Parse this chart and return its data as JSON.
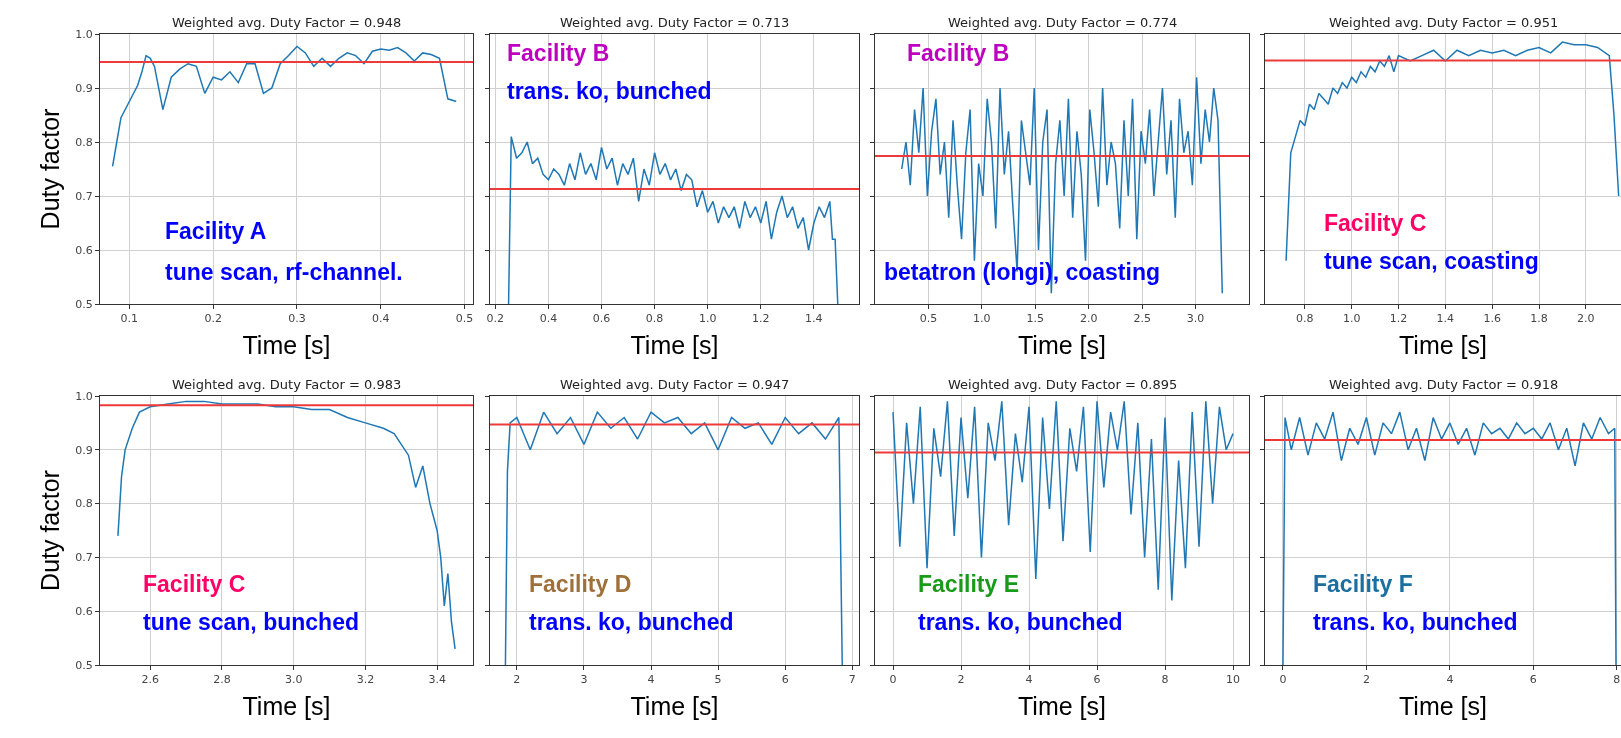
{
  "chart_data": [
    {
      "type": "line",
      "title": "Weighted avg. Duty Factor = 0.948",
      "xlabel": "Time [s]",
      "ylabel": "Duty factor",
      "xlim": [
        0.065,
        0.51
      ],
      "xticks": [
        0.1,
        0.2,
        0.3,
        0.4,
        0.5
      ],
      "ylim": [
        0.5,
        1.0
      ],
      "yticks": [
        0.5,
        0.6,
        0.7,
        0.8,
        0.9,
        {
          "value": 1.0,
          "label": "1.0"
        }
      ],
      "grid": true,
      "series": [
        {
          "color": "#1f77b4",
          "x": [
            0.08,
            0.085,
            0.09,
            0.1,
            0.11,
            0.115,
            0.12,
            0.125,
            0.13,
            0.14,
            0.15,
            0.16,
            0.17,
            0.18,
            0.19,
            0.2,
            0.21,
            0.22,
            0.23,
            0.24,
            0.25,
            0.26,
            0.27,
            0.28,
            0.29,
            0.3,
            0.31,
            0.32,
            0.33,
            0.34,
            0.35,
            0.36,
            0.37,
            0.38,
            0.39,
            0.4,
            0.41,
            0.42,
            0.43,
            0.44,
            0.45,
            0.46,
            0.47,
            0.48,
            0.49
          ],
          "values": [
            0.755,
            0.8,
            0.845,
            0.875,
            0.905,
            0.93,
            0.96,
            0.955,
            0.94,
            0.86,
            0.92,
            0.935,
            0.945,
            0.94,
            0.89,
            0.92,
            0.915,
            0.93,
            0.91,
            0.945,
            0.945,
            0.89,
            0.9,
            0.945,
            0.96,
            0.977,
            0.965,
            0.94,
            0.955,
            0.94,
            0.955,
            0.965,
            0.96,
            0.945,
            0.968,
            0.972,
            0.97,
            0.975,
            0.965,
            0.95,
            0.965,
            0.962,
            0.955,
            0.88,
            0.875
          ]
        }
      ],
      "ref_lines": [
        {
          "axis": "y",
          "value": 0.948,
          "color": "#ee3a3a"
        }
      ],
      "annotations": [
        "Facility A",
        "tune scan, rf-channel."
      ]
    },
    {
      "type": "line",
      "title": "Weighted avg. Duty Factor = 0.713",
      "xlabel": "Time [s]",
      "xlim": [
        0.18,
        1.57
      ],
      "xticks": [
        0.2,
        0.4,
        0.6,
        0.8,
        {
          "value": 1.0,
          "label": "1.0"
        },
        1.2,
        1.4
      ],
      "ylim": [
        0.5,
        1.0
      ],
      "yticks": [
        0.5,
        0.6,
        0.7,
        0.8,
        0.9,
        1.0
      ],
      "grid": true,
      "tick_labels": "x",
      "series": [
        {
          "color": "#1f77b4",
          "x": [
            0.25,
            0.26,
            0.28,
            0.3,
            0.32,
            0.34,
            0.36,
            0.38,
            0.4,
            0.42,
            0.44,
            0.46,
            0.48,
            0.5,
            0.52,
            0.54,
            0.56,
            0.58,
            0.6,
            0.62,
            0.64,
            0.66,
            0.68,
            0.7,
            0.72,
            0.74,
            0.76,
            0.78,
            0.8,
            0.82,
            0.84,
            0.86,
            0.88,
            0.9,
            0.92,
            0.94,
            0.96,
            0.98,
            1.0,
            1.02,
            1.04,
            1.06,
            1.08,
            1.1,
            1.12,
            1.14,
            1.16,
            1.18,
            1.2,
            1.22,
            1.24,
            1.26,
            1.28,
            1.3,
            1.32,
            1.34,
            1.36,
            1.38,
            1.4,
            1.42,
            1.44,
            1.46,
            1.47,
            1.48,
            1.49
          ],
          "values": [
            0.5,
            0.81,
            0.77,
            0.78,
            0.8,
            0.76,
            0.77,
            0.74,
            0.73,
            0.75,
            0.74,
            0.72,
            0.76,
            0.73,
            0.78,
            0.74,
            0.76,
            0.73,
            0.79,
            0.75,
            0.77,
            0.72,
            0.76,
            0.74,
            0.77,
            0.69,
            0.75,
            0.72,
            0.78,
            0.74,
            0.76,
            0.73,
            0.75,
            0.71,
            0.74,
            0.73,
            0.68,
            0.71,
            0.67,
            0.69,
            0.65,
            0.68,
            0.66,
            0.68,
            0.64,
            0.69,
            0.66,
            0.68,
            0.65,
            0.69,
            0.62,
            0.67,
            0.7,
            0.66,
            0.68,
            0.64,
            0.66,
            0.6,
            0.65,
            0.68,
            0.66,
            0.69,
            0.62,
            0.62,
            0.5
          ]
        }
      ],
      "ref_lines": [
        {
          "axis": "y",
          "value": 0.713,
          "color": "#ee3a3a"
        }
      ],
      "annotations": [
        "Facility B",
        "trans. ko, bunched"
      ]
    },
    {
      "type": "line",
      "title": "Weighted avg. Duty Factor = 0.774",
      "xlabel": "Time [s]",
      "xlim": [
        0.0,
        3.5
      ],
      "xticks": [
        0.5,
        {
          "value": 1.0,
          "label": "1.0"
        },
        1.5,
        {
          "value": 2.0,
          "label": "2.0"
        },
        2.5,
        {
          "value": 3.0,
          "label": "3.0"
        }
      ],
      "ylim": [
        0.5,
        1.0
      ],
      "yticks": [
        0.5,
        0.6,
        0.7,
        0.8,
        0.9,
        1.0
      ],
      "grid": true,
      "tick_labels": "x",
      "series": [
        {
          "color": "#1f77b4",
          "x": [
            0.25,
            0.29,
            0.33,
            0.37,
            0.41,
            0.45,
            0.49,
            0.53,
            0.57,
            0.61,
            0.65,
            0.69,
            0.73,
            0.77,
            0.81,
            0.85,
            0.89,
            0.93,
            0.97,
            1.01,
            1.05,
            1.09,
            1.13,
            1.17,
            1.21,
            1.25,
            1.29,
            1.33,
            1.37,
            1.41,
            1.45,
            1.49,
            1.53,
            1.57,
            1.61,
            1.65,
            1.69,
            1.73,
            1.77,
            1.81,
            1.85,
            1.89,
            1.93,
            1.97,
            2.01,
            2.05,
            2.09,
            2.13,
            2.17,
            2.21,
            2.25,
            2.29,
            2.33,
            2.37,
            2.41,
            2.45,
            2.49,
            2.53,
            2.57,
            2.61,
            2.65,
            2.69,
            2.73,
            2.77,
            2.81,
            2.85,
            2.89,
            2.93,
            2.97,
            3.01,
            3.05,
            3.09,
            3.13,
            3.17,
            3.21,
            3.25
          ],
          "values": [
            0.75,
            0.8,
            0.72,
            0.86,
            0.78,
            0.9,
            0.7,
            0.82,
            0.88,
            0.74,
            0.8,
            0.66,
            0.84,
            0.72,
            0.62,
            0.78,
            0.86,
            0.58,
            0.76,
            0.7,
            0.88,
            0.8,
            0.64,
            0.9,
            0.74,
            0.82,
            0.68,
            0.56,
            0.84,
            0.78,
            0.72,
            0.9,
            0.6,
            0.8,
            0.86,
            0.52,
            0.76,
            0.84,
            0.7,
            0.88,
            0.66,
            0.82,
            0.74,
            0.58,
            0.86,
            0.78,
            0.68,
            0.9,
            0.72,
            0.8,
            0.76,
            0.64,
            0.84,
            0.7,
            0.88,
            0.62,
            0.82,
            0.76,
            0.86,
            0.7,
            0.8,
            0.9,
            0.74,
            0.84,
            0.66,
            0.88,
            0.78,
            0.82,
            0.72,
            0.92,
            0.76,
            0.86,
            0.8,
            0.9,
            0.84,
            0.52
          ]
        }
      ],
      "ref_lines": [
        {
          "axis": "y",
          "value": 0.774,
          "color": "#ee3a3a"
        }
      ],
      "annotations": [
        "Facility B",
        "betatron (longi), coasting"
      ]
    },
    {
      "type": "line",
      "title": "Weighted avg. Duty Factor = 0.951",
      "xlabel": "Time [s]",
      "xlim": [
        0.63,
        2.15
      ],
      "xticks": [
        0.8,
        {
          "value": 1.0,
          "label": "1.0"
        },
        1.2,
        1.4,
        1.6,
        1.8,
        {
          "value": 2.0,
          "label": "2.0"
        }
      ],
      "ylim": [
        0.5,
        1.0
      ],
      "yticks": [
        0.5,
        0.6,
        0.7,
        0.8,
        0.9,
        1.0
      ],
      "grid": true,
      "tick_labels": "x",
      "series": [
        {
          "color": "#1f77b4",
          "x": [
            0.72,
            0.74,
            0.76,
            0.78,
            0.8,
            0.82,
            0.84,
            0.86,
            0.88,
            0.9,
            0.92,
            0.94,
            0.96,
            0.98,
            1.0,
            1.02,
            1.04,
            1.06,
            1.08,
            1.1,
            1.12,
            1.14,
            1.16,
            1.18,
            1.2,
            1.25,
            1.3,
            1.35,
            1.4,
            1.45,
            1.5,
            1.55,
            1.6,
            1.65,
            1.7,
            1.75,
            1.8,
            1.85,
            1.9,
            1.95,
            2.0,
            2.05,
            2.1,
            2.12,
            2.14
          ],
          "values": [
            0.58,
            0.78,
            0.81,
            0.84,
            0.83,
            0.87,
            0.86,
            0.89,
            0.88,
            0.87,
            0.9,
            0.89,
            0.91,
            0.9,
            0.92,
            0.91,
            0.93,
            0.92,
            0.94,
            0.93,
            0.95,
            0.94,
            0.96,
            0.93,
            0.96,
            0.95,
            0.96,
            0.97,
            0.95,
            0.97,
            0.96,
            0.97,
            0.965,
            0.97,
            0.96,
            0.97,
            0.975,
            0.965,
            0.985,
            0.98,
            0.98,
            0.975,
            0.96,
            0.85,
            0.7
          ]
        }
      ],
      "ref_lines": [
        {
          "axis": "y",
          "value": 0.951,
          "color": "#ee3a3a"
        }
      ],
      "annotations": [
        "Facility C",
        "tune scan, coasting"
      ]
    },
    {
      "type": "line",
      "title": "Weighted avg. Duty Factor = 0.983",
      "xlabel": "Time [s]",
      "ylabel": "Duty factor",
      "xlim": [
        2.46,
        3.5
      ],
      "xticks": [
        2.6,
        2.8,
        {
          "value": 3.0,
          "label": "3.0"
        },
        3.2,
        3.4
      ],
      "ylim": [
        0.5,
        1.0
      ],
      "yticks": [
        0.5,
        0.6,
        0.7,
        0.8,
        0.9,
        {
          "value": 1.0,
          "label": "1.0"
        }
      ],
      "grid": true,
      "series": [
        {
          "color": "#1f77b4",
          "x": [
            2.51,
            2.52,
            2.53,
            2.55,
            2.57,
            2.6,
            2.65,
            2.7,
            2.75,
            2.8,
            2.85,
            2.9,
            2.95,
            3.0,
            3.05,
            3.1,
            3.15,
            3.2,
            3.25,
            3.28,
            3.3,
            3.32,
            3.34,
            3.36,
            3.38,
            3.4,
            3.41,
            3.42,
            3.43,
            3.44,
            3.45
          ],
          "values": [
            0.74,
            0.85,
            0.9,
            0.94,
            0.97,
            0.98,
            0.985,
            0.99,
            0.99,
            0.985,
            0.985,
            0.985,
            0.98,
            0.98,
            0.975,
            0.975,
            0.96,
            0.95,
            0.94,
            0.93,
            0.91,
            0.89,
            0.83,
            0.87,
            0.8,
            0.75,
            0.7,
            0.61,
            0.67,
            0.58,
            0.53
          ]
        }
      ],
      "ref_lines": [
        {
          "axis": "y",
          "value": 0.983,
          "color": "#ee3a3a"
        }
      ],
      "annotations": [
        "Facility C",
        "tune scan, bunched"
      ]
    },
    {
      "type": "line",
      "title": "Weighted avg. Duty Factor = 0.947",
      "xlabel": "Time [s]",
      "xlim": [
        1.6,
        7.1
      ],
      "xticks": [
        2,
        3,
        4,
        5,
        6,
        7
      ],
      "ylim": [
        0.5,
        1.0
      ],
      "yticks": [
        0.5,
        0.6,
        0.7,
        0.8,
        0.9,
        1.0
      ],
      "grid": true,
      "tick_labels": "x",
      "series": [
        {
          "color": "#1f77b4",
          "x": [
            1.83,
            1.86,
            1.9,
            2.0,
            2.2,
            2.4,
            2.6,
            2.8,
            3.0,
            3.2,
            3.4,
            3.6,
            3.8,
            4.0,
            4.2,
            4.4,
            4.6,
            4.8,
            5.0,
            5.2,
            5.4,
            5.6,
            5.8,
            6.0,
            6.2,
            6.4,
            6.6,
            6.8,
            6.85
          ],
          "values": [
            0.5,
            0.86,
            0.95,
            0.96,
            0.9,
            0.97,
            0.93,
            0.96,
            0.91,
            0.97,
            0.94,
            0.96,
            0.92,
            0.97,
            0.95,
            0.96,
            0.93,
            0.95,
            0.9,
            0.96,
            0.94,
            0.95,
            0.91,
            0.96,
            0.93,
            0.95,
            0.92,
            0.96,
            0.5
          ]
        }
      ],
      "ref_lines": [
        {
          "axis": "y",
          "value": 0.947,
          "color": "#ee3a3a"
        }
      ],
      "annotations": [
        "Facility D",
        "trans. ko, bunched"
      ]
    },
    {
      "type": "line",
      "title": "Weighted avg. Duty Factor = 0.895",
      "xlabel": "Time [s]",
      "xlim": [
        -0.53,
        10.47
      ],
      "xticks": [
        0,
        2,
        4,
        6,
        8,
        10
      ],
      "ylim": [
        0.5,
        1.0
      ],
      "yticks": [
        0.5,
        0.6,
        0.7,
        0.8,
        0.9,
        1.0
      ],
      "grid": true,
      "tick_labels": "x",
      "series": [
        {
          "color": "#1f77b4",
          "x": [
            0,
            0.2,
            0.4,
            0.6,
            0.8,
            1.0,
            1.2,
            1.4,
            1.6,
            1.8,
            2.0,
            2.2,
            2.4,
            2.6,
            2.8,
            3.0,
            3.2,
            3.4,
            3.6,
            3.8,
            4.0,
            4.2,
            4.4,
            4.6,
            4.8,
            5.0,
            5.2,
            5.4,
            5.6,
            5.8,
            6.0,
            6.2,
            6.4,
            6.6,
            6.8,
            7.0,
            7.2,
            7.4,
            7.6,
            7.8,
            8.0,
            8.2,
            8.4,
            8.6,
            8.8,
            9.0,
            9.2,
            9.4,
            9.6,
            9.8,
            10.0
          ],
          "values": [
            0.97,
            0.72,
            0.95,
            0.8,
            0.98,
            0.68,
            0.94,
            0.85,
            0.99,
            0.74,
            0.96,
            0.81,
            0.98,
            0.7,
            0.95,
            0.88,
            0.99,
            0.76,
            0.93,
            0.84,
            0.98,
            0.66,
            0.96,
            0.79,
            0.99,
            0.73,
            0.94,
            0.86,
            0.98,
            0.71,
            0.99,
            0.83,
            0.97,
            0.9,
            0.99,
            0.78,
            0.95,
            0.7,
            0.92,
            0.64,
            0.96,
            0.62,
            0.88,
            0.68,
            0.97,
            0.72,
            0.99,
            0.8,
            0.98,
            0.9,
            0.93
          ]
        }
      ],
      "ref_lines": [
        {
          "axis": "y",
          "value": 0.895,
          "color": "#ee3a3a"
        }
      ],
      "annotations": [
        "Facility E",
        "trans. ko, bunched"
      ]
    },
    {
      "type": "line",
      "title": "Weighted avg. Duty Factor = 0.918",
      "xlabel": "Time [s]",
      "xlim": [
        -0.43,
        8.1
      ],
      "xticks": [
        0,
        2,
        4,
        6,
        8
      ],
      "ylim": [
        0.5,
        1.0
      ],
      "yticks": [
        0.5,
        0.6,
        0.7,
        0.8,
        0.9,
        1.0
      ],
      "grid": true,
      "tick_labels": "x",
      "series": [
        {
          "color": "#1f77b4",
          "x": [
            0,
            0.05,
            0.2,
            0.4,
            0.6,
            0.8,
            1.0,
            1.2,
            1.4,
            1.6,
            1.8,
            2.0,
            2.2,
            2.4,
            2.6,
            2.8,
            3.0,
            3.2,
            3.4,
            3.6,
            3.8,
            4.0,
            4.2,
            4.4,
            4.6,
            4.8,
            5.0,
            5.2,
            5.4,
            5.6,
            5.8,
            6.0,
            6.2,
            6.4,
            6.6,
            6.8,
            7.0,
            7.2,
            7.4,
            7.6,
            7.8,
            7.95,
            7.98
          ],
          "values": [
            0.5,
            0.96,
            0.9,
            0.96,
            0.89,
            0.95,
            0.92,
            0.97,
            0.88,
            0.94,
            0.91,
            0.96,
            0.89,
            0.95,
            0.93,
            0.97,
            0.9,
            0.94,
            0.88,
            0.96,
            0.92,
            0.95,
            0.91,
            0.94,
            0.89,
            0.95,
            0.93,
            0.94,
            0.92,
            0.95,
            0.93,
            0.94,
            0.92,
            0.95,
            0.9,
            0.94,
            0.87,
            0.95,
            0.92,
            0.96,
            0.93,
            0.94,
            0.5
          ]
        }
      ],
      "ref_lines": [
        {
          "axis": "y",
          "value": 0.918,
          "color": "#ee3a3a"
        }
      ],
      "annotations": [
        "Facility F",
        "trans. ko, bunched"
      ]
    }
  ]
}
